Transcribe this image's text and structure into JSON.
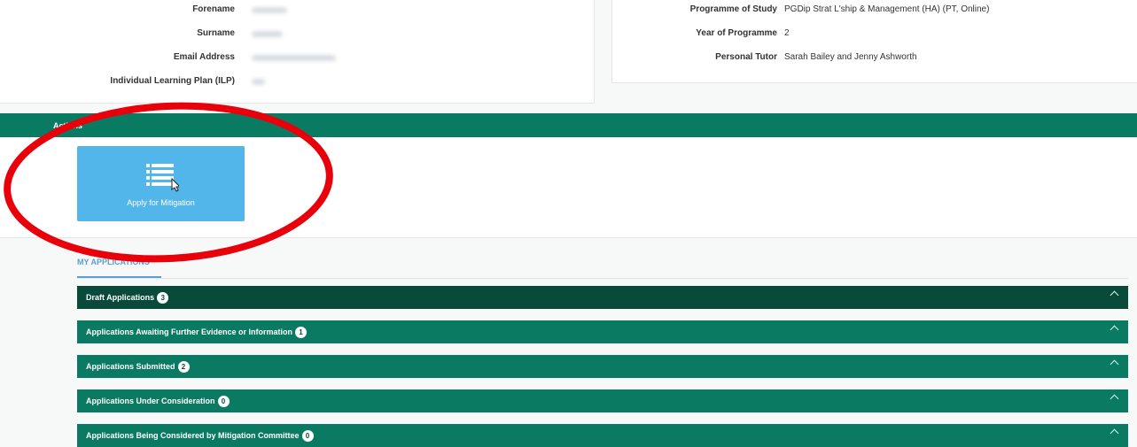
{
  "personal_details": {
    "fields": [
      {
        "label": "Forename"
      },
      {
        "label": "Surname"
      },
      {
        "label": "Email Address"
      },
      {
        "label": "Individual Learning Plan (ILP)"
      }
    ]
  },
  "programme_details": {
    "fields": [
      {
        "label": "Programme of Study",
        "value": "PGDip Strat L'ship & Management (HA) (PT, Online)"
      },
      {
        "label": "Year of Programme",
        "value": "2"
      },
      {
        "label": "Personal Tutor",
        "value": "Sarah Bailey and Jenny Ashworth"
      }
    ]
  },
  "actions": {
    "title": "Actions",
    "button": "Apply for Mitigation"
  },
  "tab": "MY APPLICATIONS",
  "sections": [
    {
      "title": "Draft Applications",
      "count": 3
    },
    {
      "title": "Applications Awaiting Further Evidence or Information",
      "count": 1
    },
    {
      "title": "Applications Submitted",
      "count": 2
    },
    {
      "title": "Applications Under Consideration",
      "count": 0
    },
    {
      "title": "Applications Being Considered by Mitigation Committee",
      "count": 0
    }
  ]
}
